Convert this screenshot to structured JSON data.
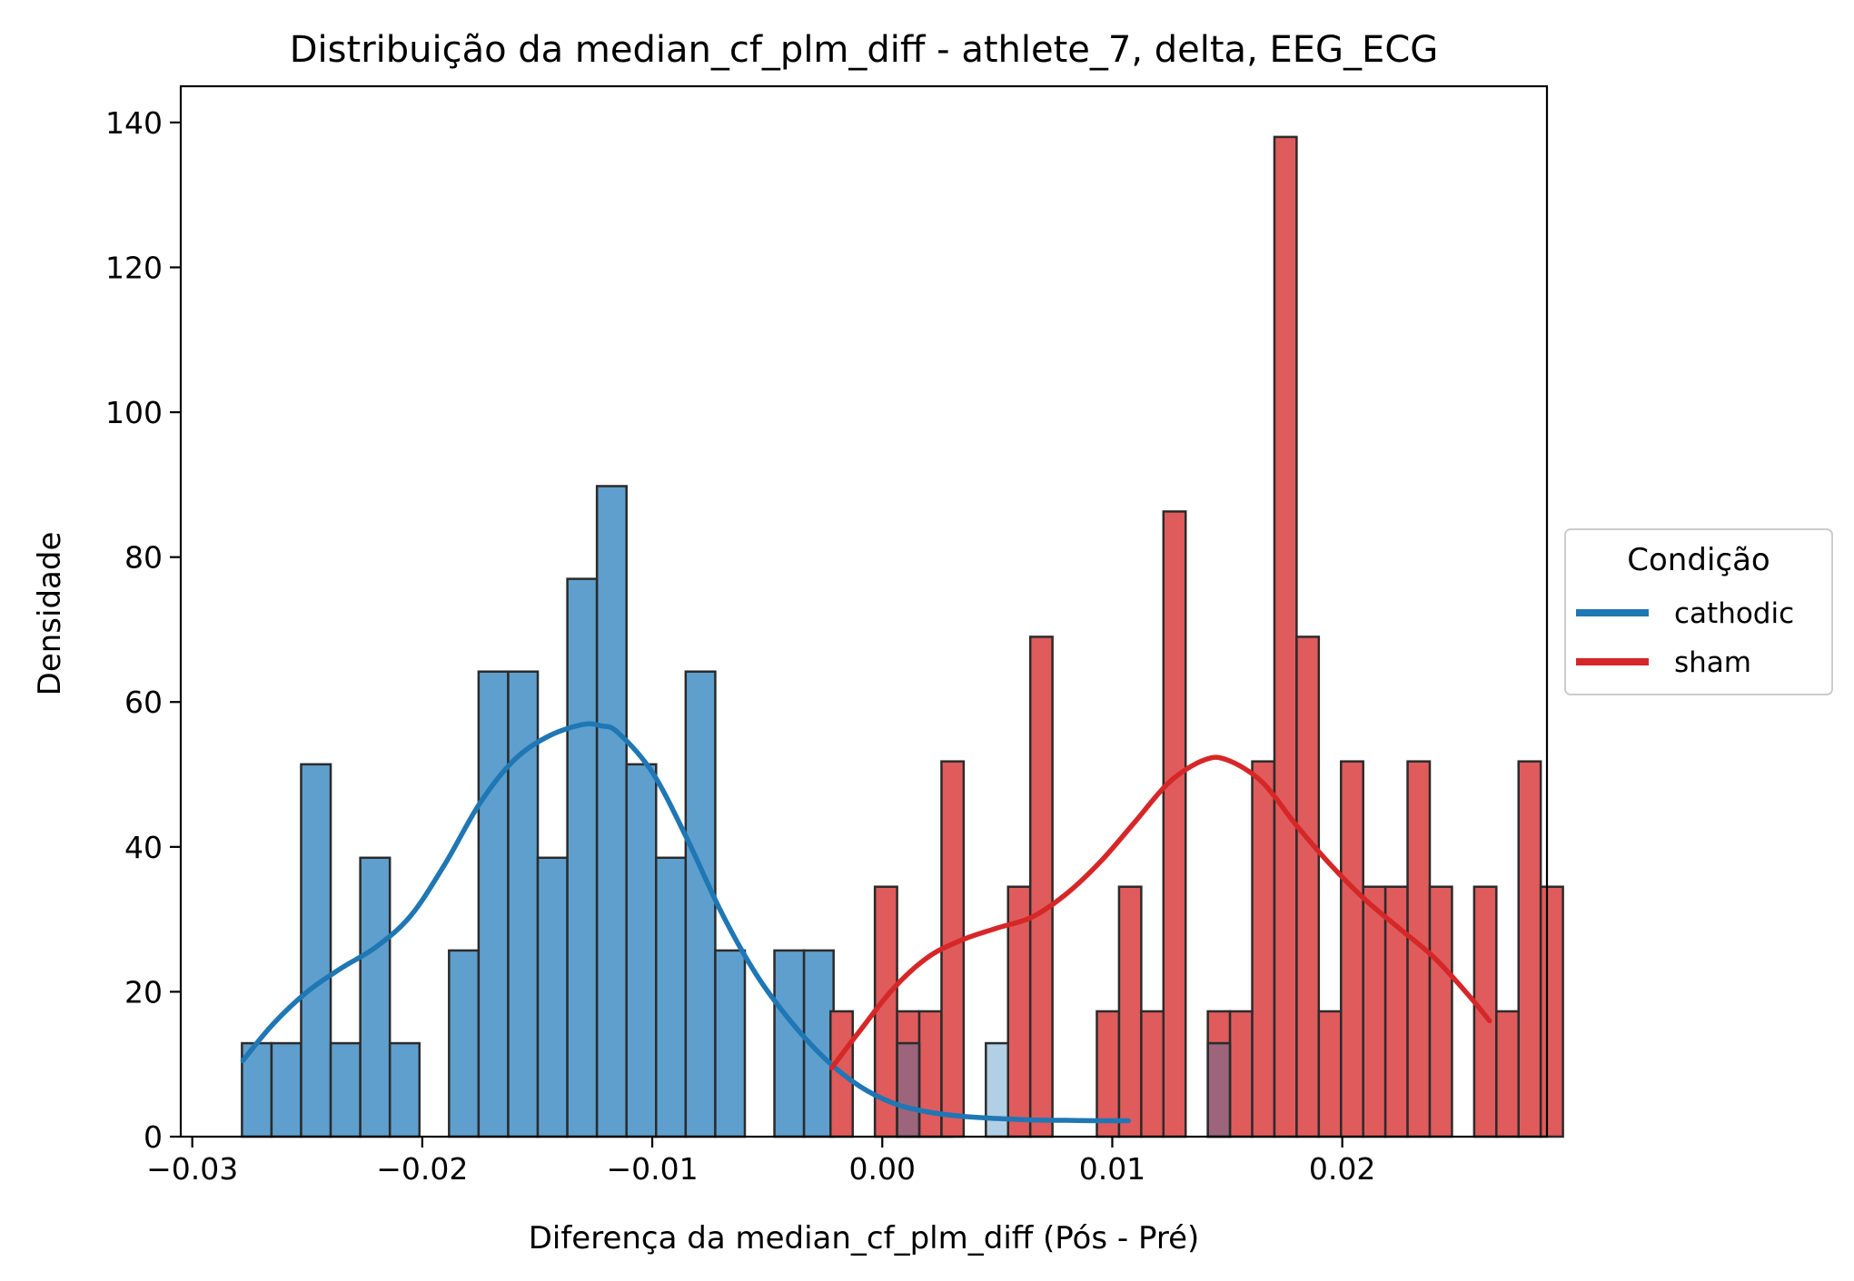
{
  "chart_data": {
    "type": "histogram",
    "title": "Distribuição da median_cf_plm_diff - athlete_7, delta, EEG_ECG",
    "xlabel": "Diferença da median_cf_plm_diff (Pós - Pré)",
    "ylabel": "Densidade",
    "xlim": [
      -0.0305,
      0.0289
    ],
    "ylim": [
      0,
      145
    ],
    "x_ticks": [
      {
        "value": -0.03,
        "label": "−0.03"
      },
      {
        "value": -0.02,
        "label": "−0.02"
      },
      {
        "value": -0.01,
        "label": "−0.01"
      },
      {
        "value": 0.0,
        "label": "0.00"
      },
      {
        "value": 0.01,
        "label": "0.01"
      },
      {
        "value": 0.02,
        "label": "0.02"
      }
    ],
    "y_ticks": [
      {
        "value": 0,
        "label": "0"
      },
      {
        "value": 20,
        "label": "20"
      },
      {
        "value": 40,
        "label": "40"
      },
      {
        "value": 60,
        "label": "60"
      },
      {
        "value": 80,
        "label": "80"
      },
      {
        "value": 100,
        "label": "100"
      },
      {
        "value": 120,
        "label": "120"
      },
      {
        "value": 140,
        "label": "140"
      }
    ],
    "grid": false,
    "legend": {
      "title": "Condição",
      "position": "center-right-outside"
    },
    "series": [
      {
        "name": "cathodic",
        "color": "#1f77b4",
        "bar_color": "#5f9fcd",
        "bin_start": -0.02784,
        "bin_width": 0.0012862,
        "heights": [
          12.9,
          12.9,
          51.4,
          12.9,
          38.5,
          12.9,
          0,
          25.7,
          64.2,
          64.2,
          38.5,
          77.0,
          89.8,
          51.4,
          38.5,
          64.2,
          25.7,
          0,
          25.7,
          25.7,
          0,
          0,
          0,
          12.9
        ],
        "kde_x": [
          -0.0278,
          -0.0265,
          -0.025,
          -0.0235,
          -0.022,
          -0.0205,
          -0.019,
          -0.0175,
          -0.016,
          -0.0145,
          -0.013,
          -0.0122,
          -0.0115,
          -0.01,
          -0.0085,
          -0.007,
          -0.0055,
          -0.004,
          -0.0025,
          -0.001,
          0.0005,
          0.002,
          0.0035,
          0.005,
          0.0065,
          0.008,
          0.0095,
          0.0107
        ],
        "kde_y": [
          10.5,
          15.5,
          20.0,
          23.3,
          26.2,
          30.5,
          37.7,
          46.0,
          52.0,
          55.3,
          56.9,
          56.7,
          55.8,
          50.3,
          41.2,
          31.0,
          22.5,
          16.0,
          10.8,
          7.0,
          4.6,
          3.4,
          2.8,
          2.5,
          2.3,
          2.25,
          2.2,
          2.2
        ]
      },
      {
        "name": "sham",
        "color": "#d62728",
        "bar_color": "#e05b5c",
        "bin_start": -0.00225,
        "bin_width": 0.000965,
        "heights": [
          17.3,
          0,
          34.5,
          17.3,
          17.3,
          51.8,
          0,
          0,
          34.5,
          69.0,
          0,
          0,
          17.3,
          34.5,
          17.3,
          86.3,
          0,
          17.3,
          17.3,
          51.8,
          138.0,
          69.0,
          17.3,
          51.8,
          34.5,
          34.5,
          51.8,
          34.5,
          0,
          34.5,
          17.3,
          51.8,
          34.5
        ],
        "overlap_heights": [
          0,
          0,
          0,
          12.9,
          0,
          0,
          0,
          12.9,
          0,
          0,
          0,
          0,
          0,
          0,
          0,
          0,
          0,
          12.9
        ],
        "kde_x": [
          -0.0022,
          -0.001,
          0.0005,
          0.002,
          0.0035,
          0.005,
          0.0065,
          0.008,
          0.0095,
          0.011,
          0.0125,
          0.014,
          0.015,
          0.0165,
          0.018,
          0.0195,
          0.021,
          0.0225,
          0.024,
          0.0255,
          0.0264
        ],
        "kde_y": [
          9.5,
          14.5,
          20.5,
          24.8,
          27.2,
          28.8,
          30.3,
          33.5,
          38.0,
          43.5,
          49.0,
          52.0,
          52.0,
          49.0,
          43.0,
          37.5,
          32.7,
          28.7,
          24.7,
          19.5,
          16.0
        ]
      }
    ]
  }
}
